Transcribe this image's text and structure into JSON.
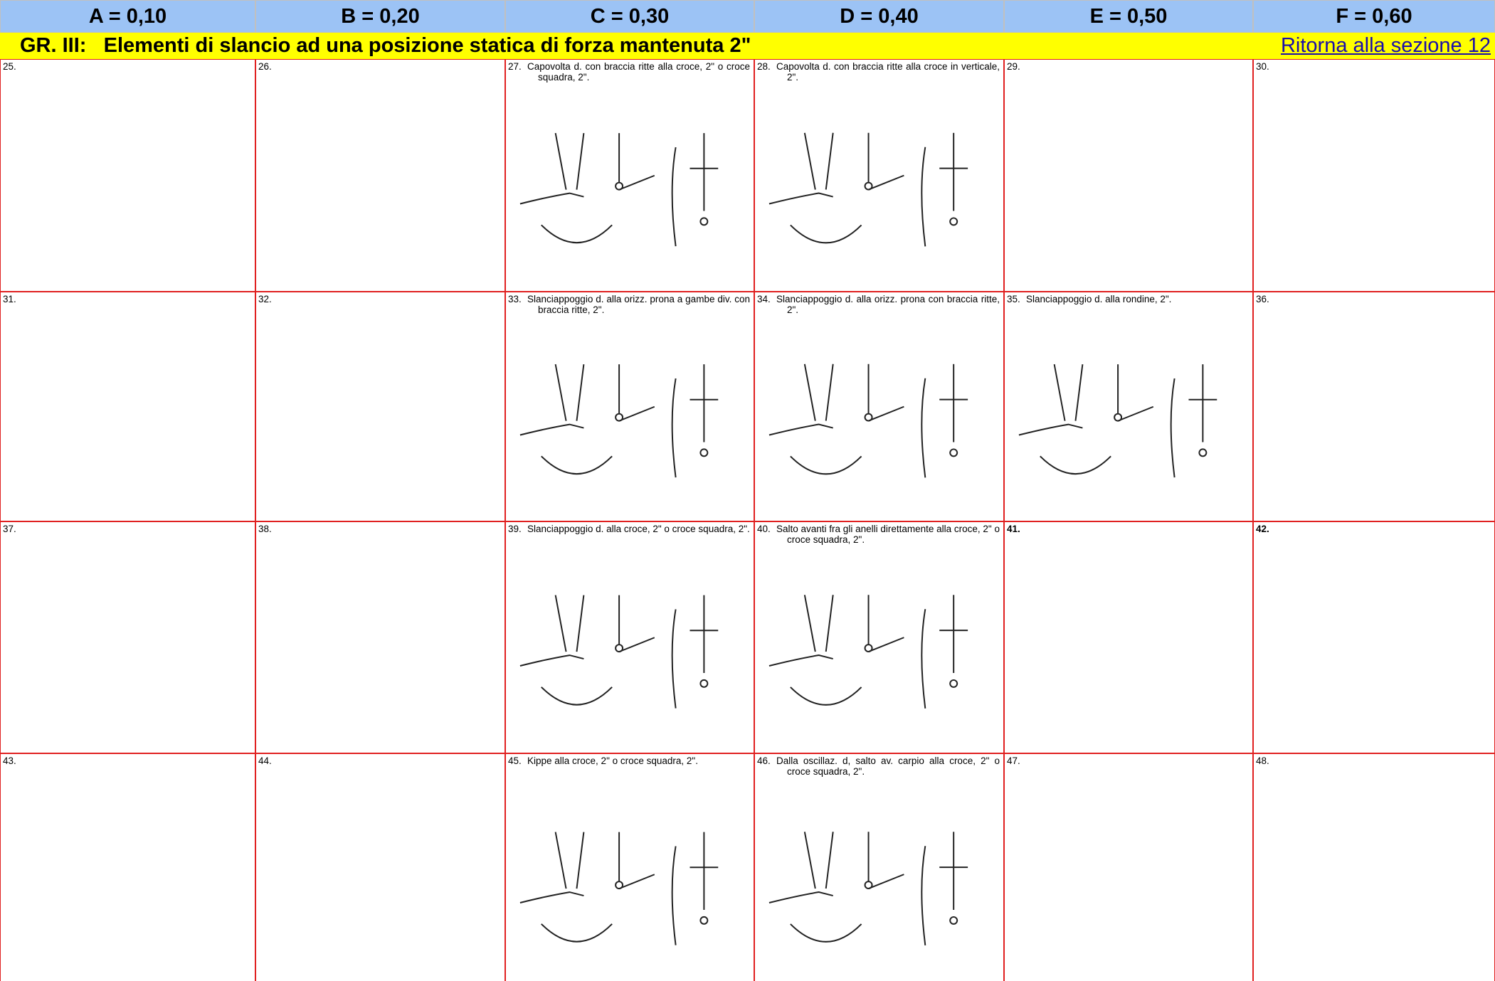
{
  "header": {
    "columns": [
      "A = 0,10",
      "B = 0,20",
      "C = 0,30",
      "D = 0,40",
      "E = 0,50",
      "F = 0,60"
    ]
  },
  "section": {
    "title": "GR. III:   Elementi di slancio ad una posizione statica di forza mantenuta 2\"",
    "link": "Ritorna alla sezione 12"
  },
  "table": {
    "rows": [
      [
        {
          "number": "25."
        },
        {
          "number": "26."
        },
        {
          "number": "27.",
          "text": "Capovolta d. con braccia ritte alla croce, 2\" o croce squadra, 2\"."
        },
        {
          "number": "28.",
          "text": "Capovolta d. con braccia ritte alla croce in verticale, 2\"."
        },
        {
          "number": "29."
        },
        {
          "number": "30."
        }
      ],
      [
        {
          "number": "31."
        },
        {
          "number": "32."
        },
        {
          "number": "33.",
          "text": "Slanciappoggio d. alla orizz. prona a gambe div. con braccia ritte, 2\"."
        },
        {
          "number": "34.",
          "text": "Slanciappoggio d. alla orizz. prona con braccia ritte, 2\"."
        },
        {
          "number": "35.",
          "text": "Slanciappoggio d. alla rondine, 2\"."
        },
        {
          "number": "36."
        }
      ],
      [
        {
          "number": "37."
        },
        {
          "number": "38."
        },
        {
          "number": "39.",
          "text": "Slanciappoggio d. alla croce, 2\" o croce squadra, 2\"."
        },
        {
          "number": "40.",
          "text": "Salto avanti fra gli anelli direttamente alla croce, 2\"  o croce squadra, 2\"."
        },
        {
          "number": "41."
        },
        {
          "number": "42."
        }
      ],
      [
        {
          "number": "43."
        },
        {
          "number": "44."
        },
        {
          "number": "45.",
          "text": "Kippe alla croce, 2\" o croce squadra, 2\"."
        },
        {
          "number": "46.",
          "text": "Dalla oscillaz. d, salto av. carpio alla croce, 2\" o croce squadra, 2\"."
        },
        {
          "number": "47."
        },
        {
          "number": "48."
        }
      ]
    ]
  }
}
